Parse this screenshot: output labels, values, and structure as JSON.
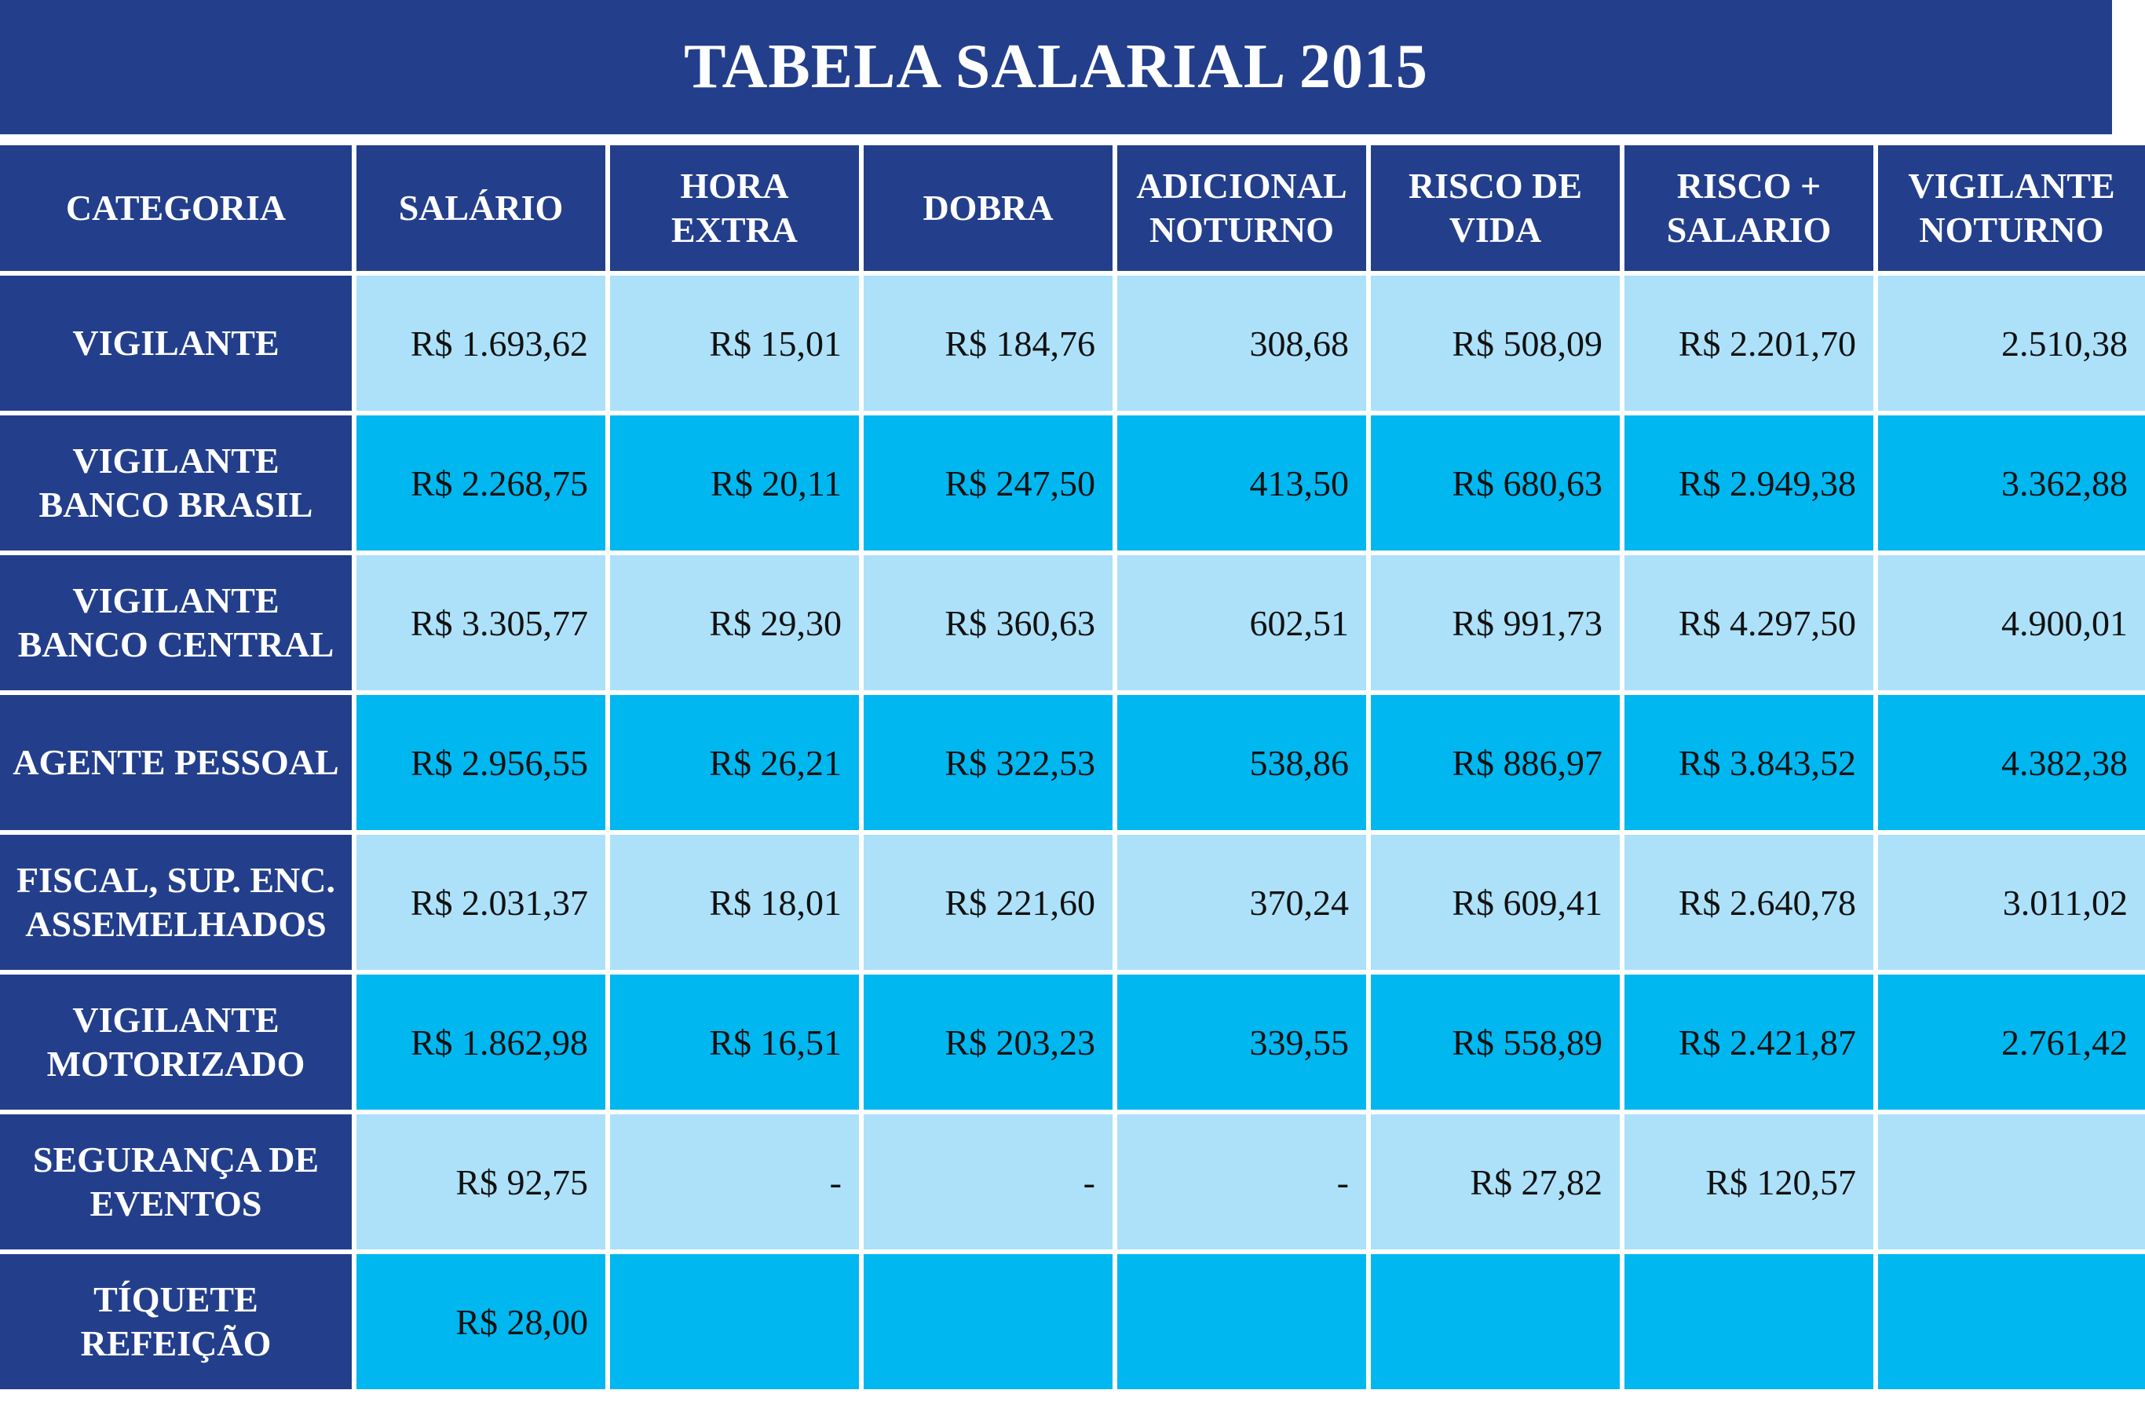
{
  "title": "TABELA SALARIAL 2015",
  "headers": [
    "CATEGORIA",
    "SALÁRIO",
    "HORA\nEXTRA",
    "DOBRA",
    "ADICIONAL\nNOTURNO",
    "RISCO DE\nVIDA",
    "RISCO +\nSALARIO",
    "VIGILANTE\nNOTURNO"
  ],
  "rows": [
    {
      "categoria": "VIGILANTE",
      "cells": [
        "R$ 1.693,62",
        "R$ 15,01",
        "R$ 184,76",
        "308,68",
        "R$ 508,09",
        "R$ 2.201,70",
        "2.510,38"
      ]
    },
    {
      "categoria": "VIGILANTE\nBANCO BRASIL",
      "cells": [
        "R$ 2.268,75",
        "R$ 20,11",
        "R$ 247,50",
        "413,50",
        "R$ 680,63",
        "R$ 2.949,38",
        "3.362,88"
      ]
    },
    {
      "categoria": "VIGILANTE\nBANCO CENTRAL",
      "cells": [
        "R$ 3.305,77",
        "R$ 29,30",
        "R$ 360,63",
        "602,51",
        "R$ 991,73",
        "R$ 4.297,50",
        "4.900,01"
      ]
    },
    {
      "categoria": "AGENTE PESSOAL",
      "cells": [
        "R$ 2.956,55",
        "R$ 26,21",
        "R$ 322,53",
        "538,86",
        "R$ 886,97",
        "R$ 3.843,52",
        "4.382,38"
      ]
    },
    {
      "categoria": "FISCAL, SUP. ENC.\nASSEMELHADOS",
      "cells": [
        "R$ 2.031,37",
        "R$ 18,01",
        "R$ 221,60",
        "370,24",
        "R$ 609,41",
        "R$ 2.640,78",
        "3.011,02"
      ]
    },
    {
      "categoria": "VIGILANTE\nMOTORIZADO",
      "cells": [
        "R$ 1.862,98",
        "R$ 16,51",
        "R$ 203,23",
        "339,55",
        "R$ 558,89",
        "R$ 2.421,87",
        "2.761,42"
      ]
    },
    {
      "categoria": "SEGURANÇA DE\nEVENTOS",
      "cells": [
        "R$ 92,75",
        "-",
        "-",
        "-",
        "R$ 27,82",
        "R$ 120,57",
        ""
      ]
    },
    {
      "categoria": "TÍQUETE\nREFEIÇÃO",
      "cells": [
        "R$ 28,00",
        "",
        "",
        "",
        "",
        "",
        ""
      ]
    }
  ],
  "colors": {
    "header_bg": "#233f8c",
    "row_light": "#ace1f9",
    "row_dark": "#00b7f0",
    "header_text": "#ffffff"
  }
}
